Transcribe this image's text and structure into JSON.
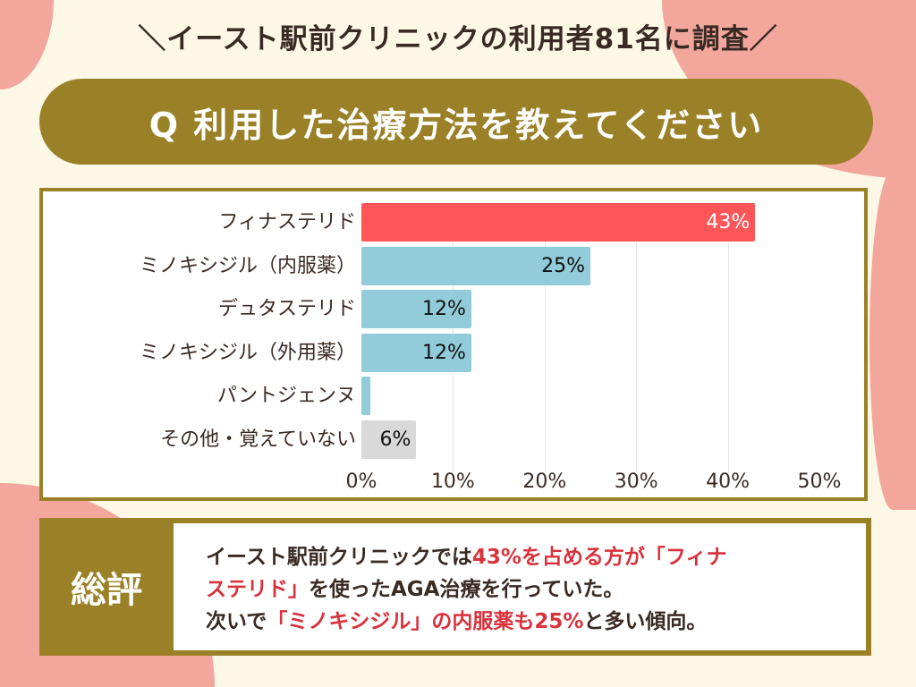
{
  "header": {
    "title": "＼イースト駅前クリニックの利用者81名に調査／"
  },
  "question": {
    "text": "Q 利用した治療方法を教えてください"
  },
  "colors": {
    "gold": "#9a8128",
    "highlight": "#fe5558",
    "bar": "#92cbd9",
    "other": "#d9d9d9",
    "pink": "#f3a79c"
  },
  "chart_data": {
    "type": "bar",
    "orientation": "horizontal",
    "categories": [
      "フィナステリド",
      "ミノキシジル（内服薬）",
      "デュタステリド",
      "ミノキシジル（外用薬）",
      "パントジェンヌ",
      "その他・覚えていない"
    ],
    "values": [
      43,
      25,
      12,
      12,
      1,
      6
    ],
    "data_labels": [
      "43%",
      "25%",
      "12%",
      "12%",
      "",
      "6%"
    ],
    "bar_colors": [
      "#fe5558",
      "#92cbd9",
      "#92cbd9",
      "#92cbd9",
      "#92cbd9",
      "#d9d9d9"
    ],
    "xlim": [
      0,
      50
    ],
    "xticks": [
      "0%",
      "10%",
      "20%",
      "30%",
      "40%",
      "50%"
    ],
    "grid": true
  },
  "summary": {
    "label": "総評",
    "line1": [
      {
        "t": "イースト駅前クリニックでは",
        "red": false
      },
      {
        "t": "43%を占める方が「フィナ",
        "red": true
      }
    ],
    "line2": [
      {
        "t": "ステリド」",
        "red": true
      },
      {
        "t": "を使ったAGA治療を行っていた。",
        "red": false
      }
    ],
    "line3": [
      {
        "t": "次いで",
        "red": false
      },
      {
        "t": "「ミノキシジル」の内服薬も25%",
        "red": true
      },
      {
        "t": "と多い傾向。",
        "red": false
      }
    ]
  }
}
